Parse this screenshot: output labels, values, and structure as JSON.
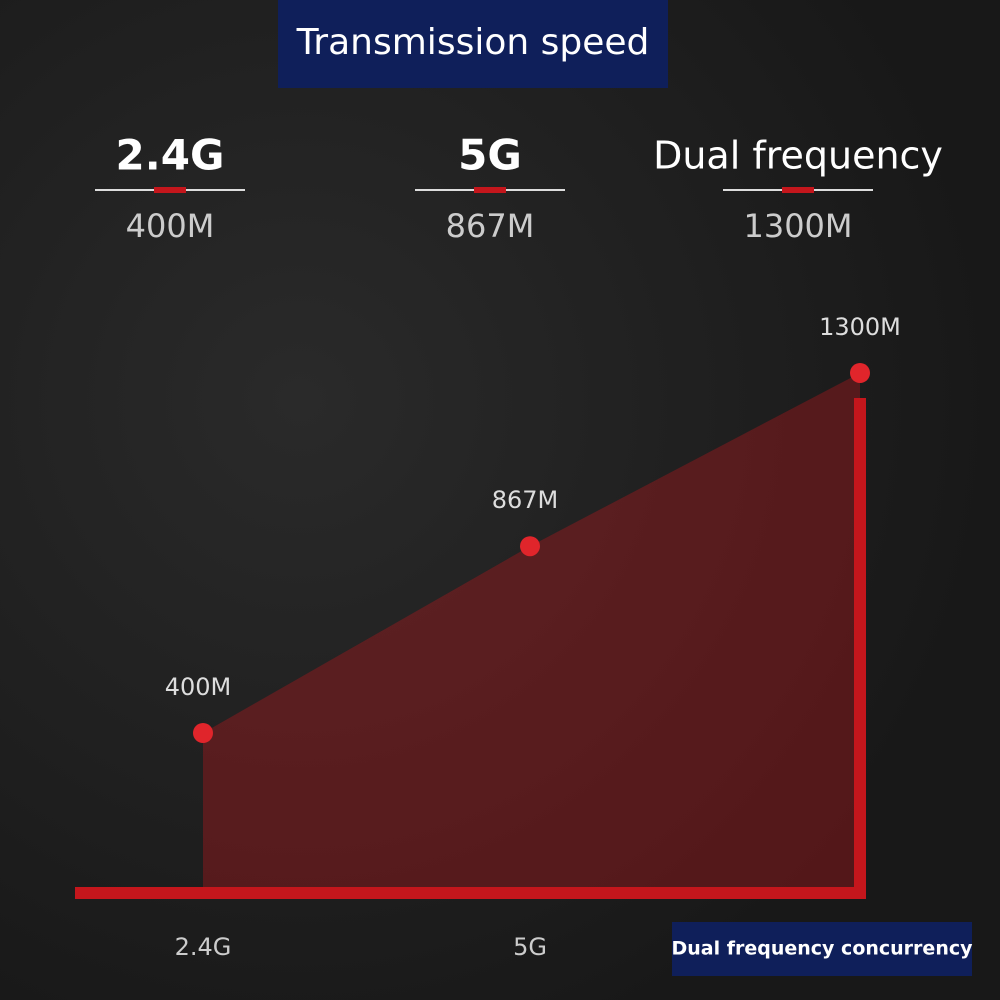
{
  "title": "Transmission speed",
  "bands": [
    {
      "name": "2.4G",
      "speed": "400M"
    },
    {
      "name": "5G",
      "speed": "867M"
    },
    {
      "name": "Dual frequency",
      "speed": "1300M"
    }
  ],
  "chart_data": {
    "type": "area",
    "categories": [
      "2.4G",
      "5G",
      "Dual frequency concurrency"
    ],
    "values": [
      400,
      867,
      1300
    ],
    "value_labels": [
      "400M",
      "867M",
      "1300M"
    ],
    "color": "#c4161c"
  }
}
